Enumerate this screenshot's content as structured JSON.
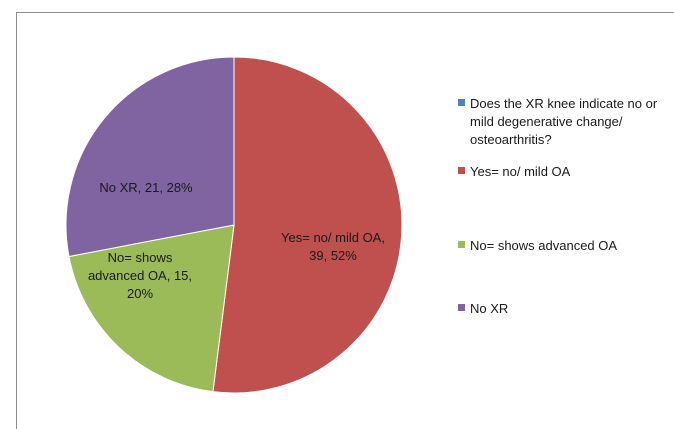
{
  "chart_data": {
    "type": "pie",
    "title": "",
    "categories": [
      "Does the XR knee indicate no or mild degenerative change/ osteoarthritis?",
      "Yes= no/ mild OA",
      "No= shows advanced OA",
      "No XR"
    ],
    "values": [
      0,
      39,
      15,
      21
    ],
    "percentages": [
      "0%",
      "52%",
      "20%",
      "28%"
    ],
    "colors": [
      "#4f81bd",
      "#c0504d",
      "#9bbb59",
      "#8064a2"
    ],
    "data_labels": [
      null,
      [
        "Yes= no/ mild OA,",
        "39, 52%"
      ],
      [
        "No= shows",
        "advanced OA, 15,",
        "20%"
      ],
      [
        "No XR, 21, 28%"
      ]
    ],
    "legend_position": "right",
    "start_angle_deg": 0,
    "direction": "clockwise"
  }
}
